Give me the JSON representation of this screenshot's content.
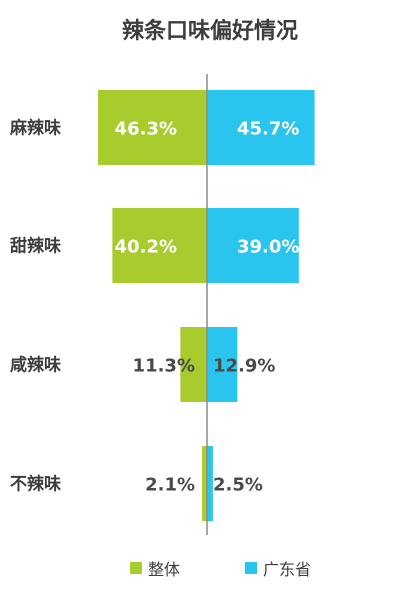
{
  "chart_data": {
    "type": "bar",
    "title": "辣条口味偏好情况",
    "xlabel": "",
    "ylabel": "",
    "categories": [
      "麻辣味",
      "甜辣味",
      "咸辣味",
      "不辣味"
    ],
    "series": [
      {
        "name": "整体",
        "color": "#a8cb2d",
        "values": [
          46.3,
          40.2,
          11.3,
          2.1
        ],
        "labels": [
          "46.3%",
          "40.2%",
          "11.3%",
          "2.1%"
        ]
      },
      {
        "name": "广东省",
        "color": "#2ac5ef",
        "values": [
          45.7,
          39.0,
          12.9,
          2.5
        ],
        "labels": [
          "45.7%",
          "39.0%",
          "12.9%",
          "2.5%"
        ]
      }
    ],
    "xlim": [
      0,
      50
    ],
    "legend_position": "bottom",
    "grid": false
  }
}
